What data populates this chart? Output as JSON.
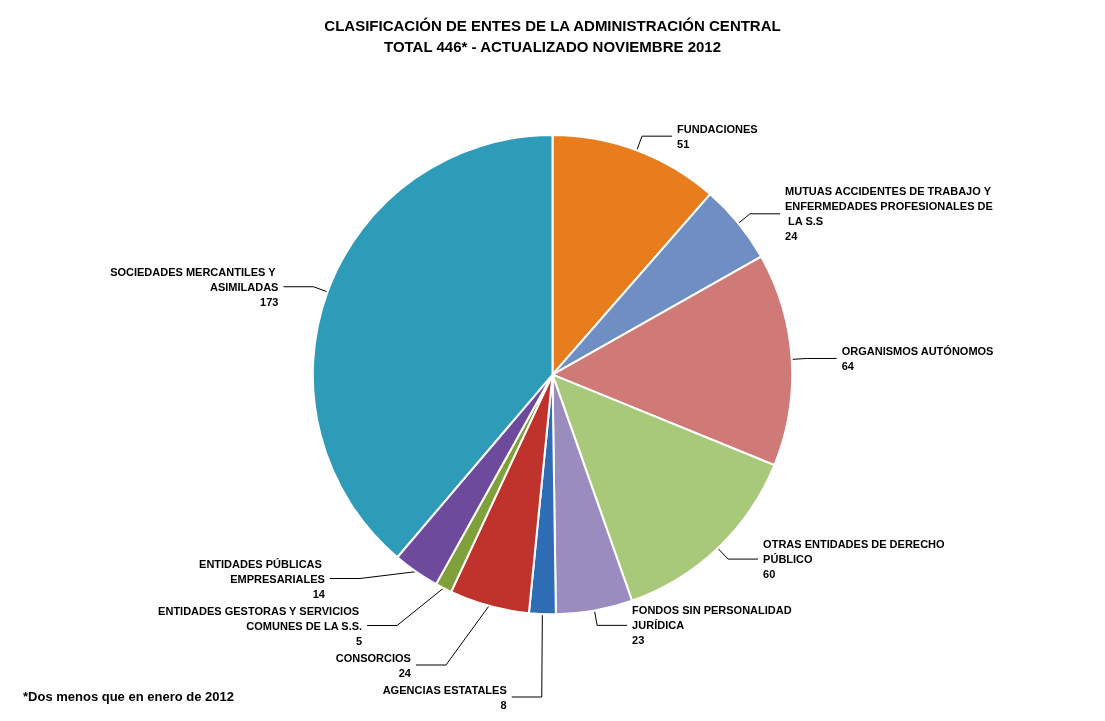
{
  "chart_data": {
    "type": "pie",
    "title": "CLASIFICACIÓN DE ENTES DE LA ADMINISTRACIÓN CENTRAL",
    "subtitle": "TOTAL 446* - ACTUALIZADO NOVIEMBRE 2012",
    "categories": [
      "FUNDACIONES",
      "MUTUAS ACCIDENTES DE TRABAJO Y ENFERMEDADES PROFESIONALES DE LA S.S",
      "ORGANISMOS AUTÓNOMOS",
      "OTRAS ENTIDADES DE DERECHO PÚBLICO",
      "FONDOS SIN PERSONALIDAD JURÍDICA",
      "AGENCIAS ESTATALES",
      "CONSORCIOS",
      "ENTIDADES GESTORAS Y SERVICIOS COMUNES DE LA S.S.",
      "ENTIDADES PÚBLICAS EMPRESARIALES",
      "SOCIEDADES MERCANTILES Y ASIMILADAS"
    ],
    "values": [
      51,
      24,
      64,
      60,
      23,
      8,
      24,
      5,
      14,
      173
    ],
    "colors": [
      "#e87d1e",
      "#6f8fc4",
      "#d07a78",
      "#a9c97a",
      "#9a8cbf",
      "#2e6db4",
      "#c0332c",
      "#7fa03a",
      "#6d4a9c",
      "#2e9bb8"
    ],
    "data_labels": true,
    "legend": false,
    "annotations": [
      "*Dos menos que en enero de 2012"
    ]
  }
}
